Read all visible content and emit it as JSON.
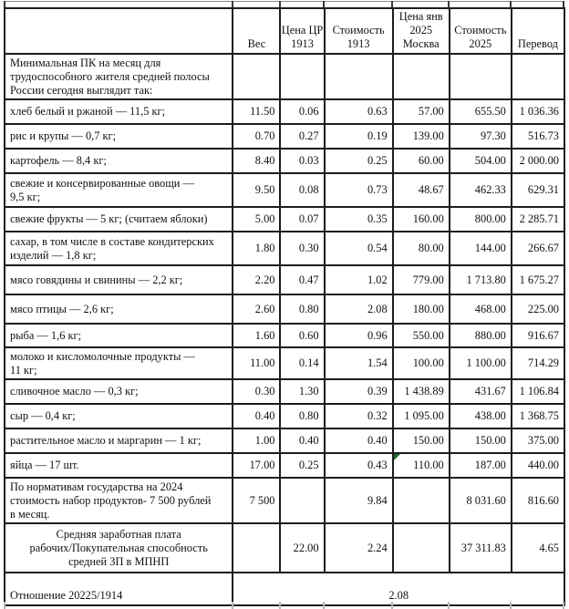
{
  "document": {
    "kind": "spreadsheet-table-screenshot",
    "language": "ru",
    "topic": "Минимальная продуктовая корзина: цены 1913 vs 2025"
  },
  "colors": {
    "border": "#1c1c1c",
    "text": "#121212",
    "error_flag_green": "#1e6b2d",
    "grid_tick_gray": "#b7b7b7"
  },
  "table": {
    "columns": [
      {
        "key": "label",
        "header": ""
      },
      {
        "key": "ves",
        "header": "Вес"
      },
      {
        "key": "cena-cr-1913",
        "header": "Цена ЦР\n1913"
      },
      {
        "key": "stoimost-1913",
        "header": "Стоимость\n1913"
      },
      {
        "key": "cena-yanv-2025-moskva",
        "header": "Цена янв\n2025\nМосква"
      },
      {
        "key": "stoimost-2025",
        "header": "Стоимость\n2025"
      },
      {
        "key": "perevod",
        "header": "Перевод"
      }
    ],
    "rows": [
      {
        "kind": "intro",
        "label": "Минимальная ПК на месяц для\nтрудоспособного жителя средней полосы\nРоссии сегодня выглядит так:",
        "values": [
          "",
          "",
          "",
          "",
          "",
          ""
        ]
      },
      {
        "kind": "item",
        "label": "хлеб белый и ржаной — 11,5 кг;",
        "values": [
          "11.50",
          "0.06",
          "0.63",
          "57.00",
          "655.50",
          "1 036.36"
        ]
      },
      {
        "kind": "item",
        "label": "рис и крупы — 0,7 кг;",
        "values": [
          "0.70",
          "0.27",
          "0.19",
          "139.00",
          "97.30",
          "516.73"
        ]
      },
      {
        "kind": "item",
        "label": "картофель — 8,4 кг;",
        "values": [
          "8.40",
          "0.03",
          "0.25",
          "60.00",
          "504.00",
          "2 000.00"
        ]
      },
      {
        "kind": "item",
        "label": "свежие и консервированные овощи —\n9,5 кг;",
        "values": [
          "9.50",
          "0.08",
          "0.73",
          "48.67",
          "462.33",
          "629.31"
        ]
      },
      {
        "kind": "item",
        "label": "свежие фрукты — 5 кг; (считаем яблоки)",
        "values": [
          "5.00",
          "0.07",
          "0.35",
          "160.00",
          "800.00",
          "2 285.71"
        ]
      },
      {
        "kind": "item",
        "label": "сахар, в том числе в составе кондитерских\nизделий — 1,8 кг;",
        "values": [
          "1.80",
          "0.30",
          "0.54",
          "80.00",
          "144.00",
          "266.67"
        ]
      },
      {
        "kind": "item",
        "label": "мясо говядины и свинины — 2,2 кг;",
        "values": [
          "2.20",
          "0.47",
          "1.02",
          "779.00",
          "1 713.80",
          "1 675.27"
        ]
      },
      {
        "kind": "item",
        "label": "мясо птицы — 2,6 кг;",
        "values": [
          "2.60",
          "0.80",
          "2.08",
          "180.00",
          "468.00",
          "225.00"
        ]
      },
      {
        "kind": "item",
        "label": "рыба — 1,6 кг;",
        "values": [
          "1.60",
          "0.60",
          "0.96",
          "550.00",
          "880.00",
          "916.67"
        ]
      },
      {
        "kind": "item",
        "label": "молоко и кисломолочные продукты —\n11 кг;",
        "values": [
          "11.00",
          "0.14",
          "1.54",
          "100.00",
          "1 100.00",
          "714.29"
        ]
      },
      {
        "kind": "item",
        "label": "сливочное масло — 0,3 кг;",
        "values": [
          "0.30",
          "1.30",
          "0.39",
          "1 438.89",
          "431.67",
          "1 106.84"
        ]
      },
      {
        "kind": "item",
        "label": "сыр — 0,4 кг;",
        "values": [
          "0.40",
          "0.80",
          "0.32",
          "1 095.00",
          "438.00",
          "1 368.75"
        ]
      },
      {
        "kind": "item",
        "label": "растительное масло и маргарин — 1 кг;",
        "values": [
          "1.00",
          "0.40",
          "0.40",
          "150.00",
          "150.00",
          "375.00"
        ]
      },
      {
        "kind": "item",
        "label": "яйца — 17 шт.",
        "values": [
          "17.00",
          "0.25",
          "0.43",
          "110.00",
          "187.00",
          "440.00"
        ],
        "flag_col": 3
      },
      {
        "kind": "summary",
        "label": "По нормативам государства на 2024\nстоимость набор продуктов- 7 500 рублей\nв месяц.",
        "values": [
          "7 500",
          "",
          "9.84",
          "",
          "8 031.60",
          "816.60"
        ]
      },
      {
        "kind": "avg",
        "label": "Средняя заработная плата\nрабочих/Покупательная способность\nсредней ЗП в МПНП",
        "values": [
          "",
          "22.00",
          "2.24",
          "",
          "37 311.83",
          "4.65"
        ]
      },
      {
        "kind": "ratio",
        "label": "Отношение 20225/1914",
        "merged_value": "2.08"
      }
    ]
  }
}
